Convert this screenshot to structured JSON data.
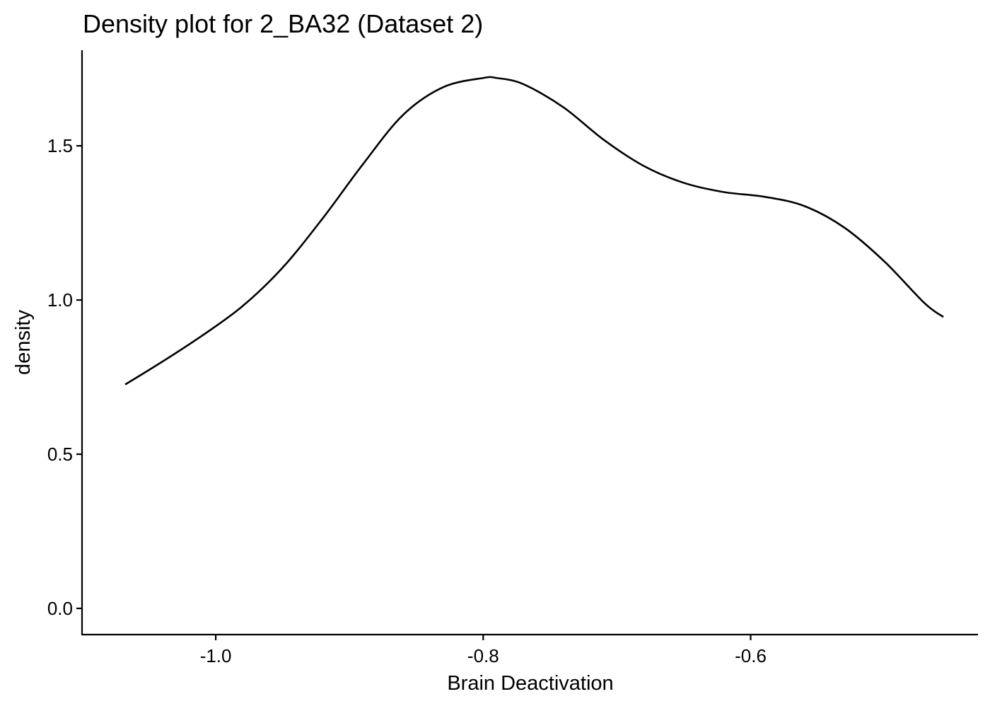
{
  "chart_data": {
    "type": "line",
    "title": "Density plot for 2_BA32 (Dataset 2)",
    "xlabel": "Brain Deactivation",
    "ylabel": "density",
    "xlim": [
      -1.1,
      -0.43
    ],
    "ylim": [
      -0.085,
      1.81
    ],
    "x_ticks": [
      {
        "value": -1.0,
        "label": "-1.0"
      },
      {
        "value": -0.8,
        "label": "-0.8"
      },
      {
        "value": -0.6,
        "label": "-0.6"
      }
    ],
    "y_ticks": [
      {
        "value": 0.0,
        "label": "0.0"
      },
      {
        "value": 0.5,
        "label": "0.5"
      },
      {
        "value": 1.0,
        "label": "1.0"
      },
      {
        "value": 1.5,
        "label": "1.5"
      }
    ],
    "grid": false,
    "legend": "none",
    "colors": {
      "line": "#000000",
      "background": "#ffffff"
    },
    "series": [
      {
        "x": [
          -1.0677,
          -1.04,
          -1.01,
          -0.98,
          -0.95,
          -0.92,
          -0.89,
          -0.86,
          -0.83,
          -0.8,
          -0.79,
          -0.77,
          -0.74,
          -0.71,
          -0.68,
          -0.65,
          -0.62,
          -0.59,
          -0.56,
          -0.53,
          -0.5,
          -0.47,
          -0.4559
        ],
        "y": [
          0.726,
          0.8,
          0.885,
          0.98,
          1.105,
          1.265,
          1.44,
          1.6,
          1.69,
          1.72,
          1.72,
          1.7,
          1.625,
          1.52,
          1.435,
          1.38,
          1.35,
          1.335,
          1.305,
          1.235,
          1.125,
          0.99,
          0.945
        ]
      }
    ]
  }
}
